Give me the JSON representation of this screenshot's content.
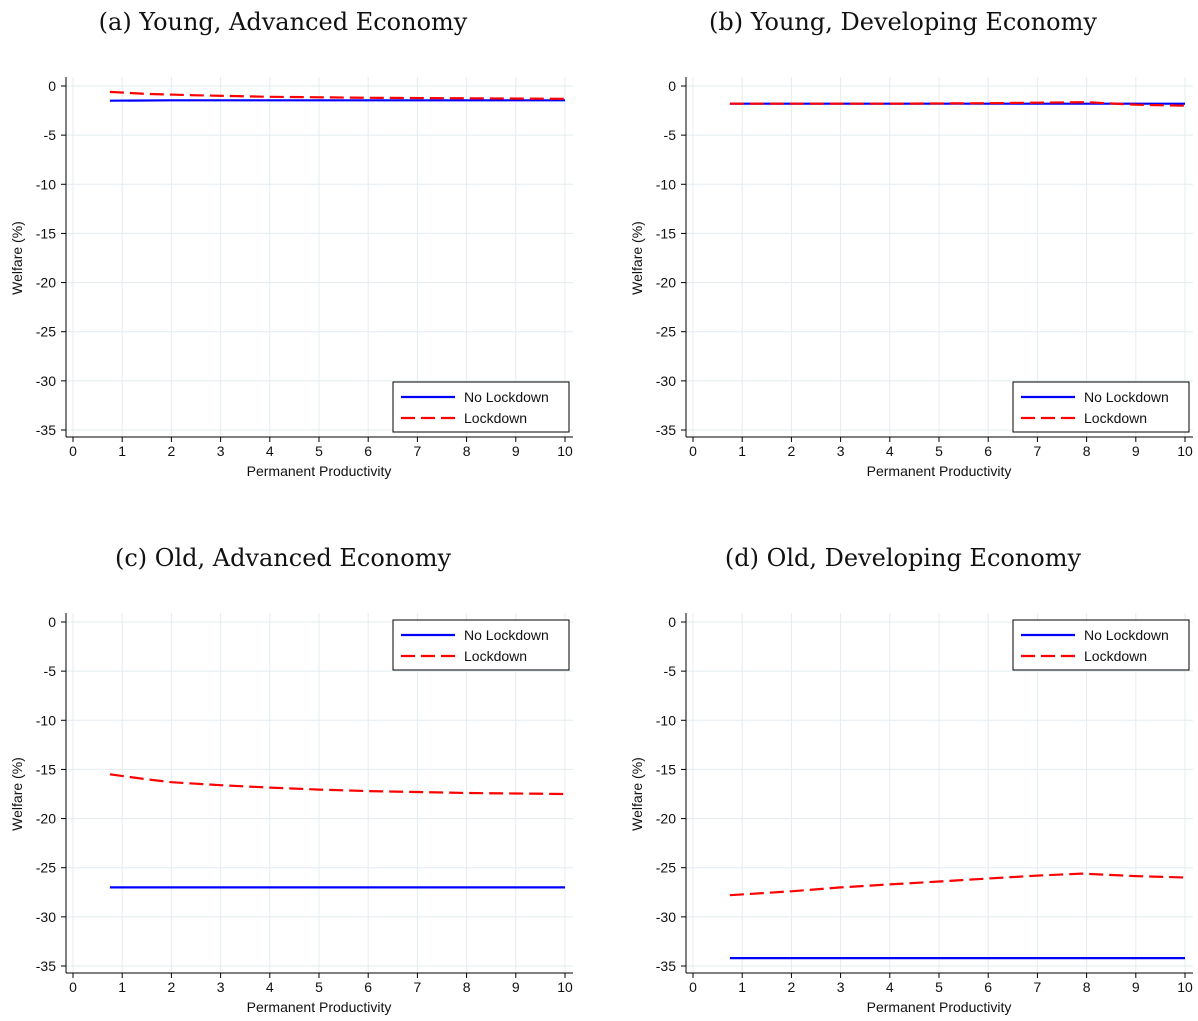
{
  "series_styles": {
    "No Lockdown": {
      "color": "#0000ff",
      "dash": ""
    },
    "Lockdown": {
      "color": "#ff0000",
      "dash": "14,6"
    }
  },
  "chart_data": [
    {
      "type": "line",
      "title": "(a) Young, Advanced Economy",
      "xlabel": "Permanent Productivity",
      "ylabel": "Welfare (%)",
      "xlim": [
        0,
        10
      ],
      "ylim": [
        -35,
        0
      ],
      "xticks": [
        0,
        1,
        2,
        3,
        4,
        5,
        6,
        7,
        8,
        9,
        10
      ],
      "yticks": [
        0,
        -5,
        -10,
        -15,
        -20,
        -25,
        -30,
        -35
      ],
      "grid": true,
      "legend_position": "bottom-right",
      "series": [
        {
          "name": "No Lockdown",
          "x": [
            0.75,
            2,
            4,
            6,
            8,
            10
          ],
          "y": [
            -1.5,
            -1.45,
            -1.45,
            -1.45,
            -1.45,
            -1.45
          ]
        },
        {
          "name": "Lockdown",
          "x": [
            0.75,
            1.5,
            2.5,
            4,
            6,
            8,
            10
          ],
          "y": [
            -0.6,
            -0.8,
            -0.95,
            -1.1,
            -1.2,
            -1.25,
            -1.3
          ]
        }
      ]
    },
    {
      "type": "line",
      "title": "(b) Young, Developing Economy",
      "xlabel": "Permanent Productivity",
      "ylabel": "Welfare (%)",
      "xlim": [
        0,
        10
      ],
      "ylim": [
        -35,
        0
      ],
      "xticks": [
        0,
        1,
        2,
        3,
        4,
        5,
        6,
        7,
        8,
        9,
        10
      ],
      "yticks": [
        0,
        -5,
        -10,
        -15,
        -20,
        -25,
        -30,
        -35
      ],
      "grid": true,
      "legend_position": "bottom-right",
      "series": [
        {
          "name": "No Lockdown",
          "x": [
            0.75,
            2,
            4,
            6,
            8,
            10
          ],
          "y": [
            -1.8,
            -1.8,
            -1.8,
            -1.8,
            -1.8,
            -1.8
          ]
        },
        {
          "name": "Lockdown",
          "x": [
            0.75,
            2,
            4,
            6,
            7,
            8,
            9,
            10
          ],
          "y": [
            -1.8,
            -1.8,
            -1.8,
            -1.75,
            -1.7,
            -1.65,
            -1.9,
            -2.0
          ]
        }
      ]
    },
    {
      "type": "line",
      "title": "(c) Old, Advanced Economy",
      "xlabel": "Permanent Productivity",
      "ylabel": "Welfare (%)",
      "xlim": [
        0,
        10
      ],
      "ylim": [
        -35,
        0
      ],
      "xticks": [
        0,
        1,
        2,
        3,
        4,
        5,
        6,
        7,
        8,
        9,
        10
      ],
      "yticks": [
        0,
        -5,
        -10,
        -15,
        -20,
        -25,
        -30,
        -35
      ],
      "grid": true,
      "legend_position": "top-right",
      "series": [
        {
          "name": "No Lockdown",
          "x": [
            0.75,
            2,
            4,
            6,
            8,
            10
          ],
          "y": [
            -27,
            -27,
            -27,
            -27,
            -27,
            -27
          ]
        },
        {
          "name": "Lockdown",
          "x": [
            0.75,
            1.5,
            2,
            3,
            4,
            5,
            6,
            7,
            8,
            9,
            10
          ],
          "y": [
            -15.5,
            -16.0,
            -16.3,
            -16.6,
            -16.85,
            -17.05,
            -17.2,
            -17.3,
            -17.4,
            -17.45,
            -17.5
          ]
        }
      ]
    },
    {
      "type": "line",
      "title": "(d) Old, Developing Economy",
      "xlabel": "Permanent Productivity",
      "ylabel": "Welfare (%)",
      "xlim": [
        0,
        10
      ],
      "ylim": [
        -35,
        0
      ],
      "xticks": [
        0,
        1,
        2,
        3,
        4,
        5,
        6,
        7,
        8,
        9,
        10
      ],
      "yticks": [
        0,
        -5,
        -10,
        -15,
        -20,
        -25,
        -30,
        -35
      ],
      "grid": true,
      "legend_position": "top-right",
      "series": [
        {
          "name": "No Lockdown",
          "x": [
            0.75,
            2,
            4,
            6,
            8,
            10
          ],
          "y": [
            -34.2,
            -34.2,
            -34.2,
            -34.2,
            -34.2,
            -34.2
          ]
        },
        {
          "name": "Lockdown",
          "x": [
            0.75,
            2,
            3,
            4,
            5,
            6,
            7,
            7.9,
            9,
            10
          ],
          "y": [
            -27.8,
            -27.4,
            -27.0,
            -26.7,
            -26.4,
            -26.1,
            -25.8,
            -25.6,
            -25.85,
            -26.0
          ]
        }
      ]
    }
  ]
}
